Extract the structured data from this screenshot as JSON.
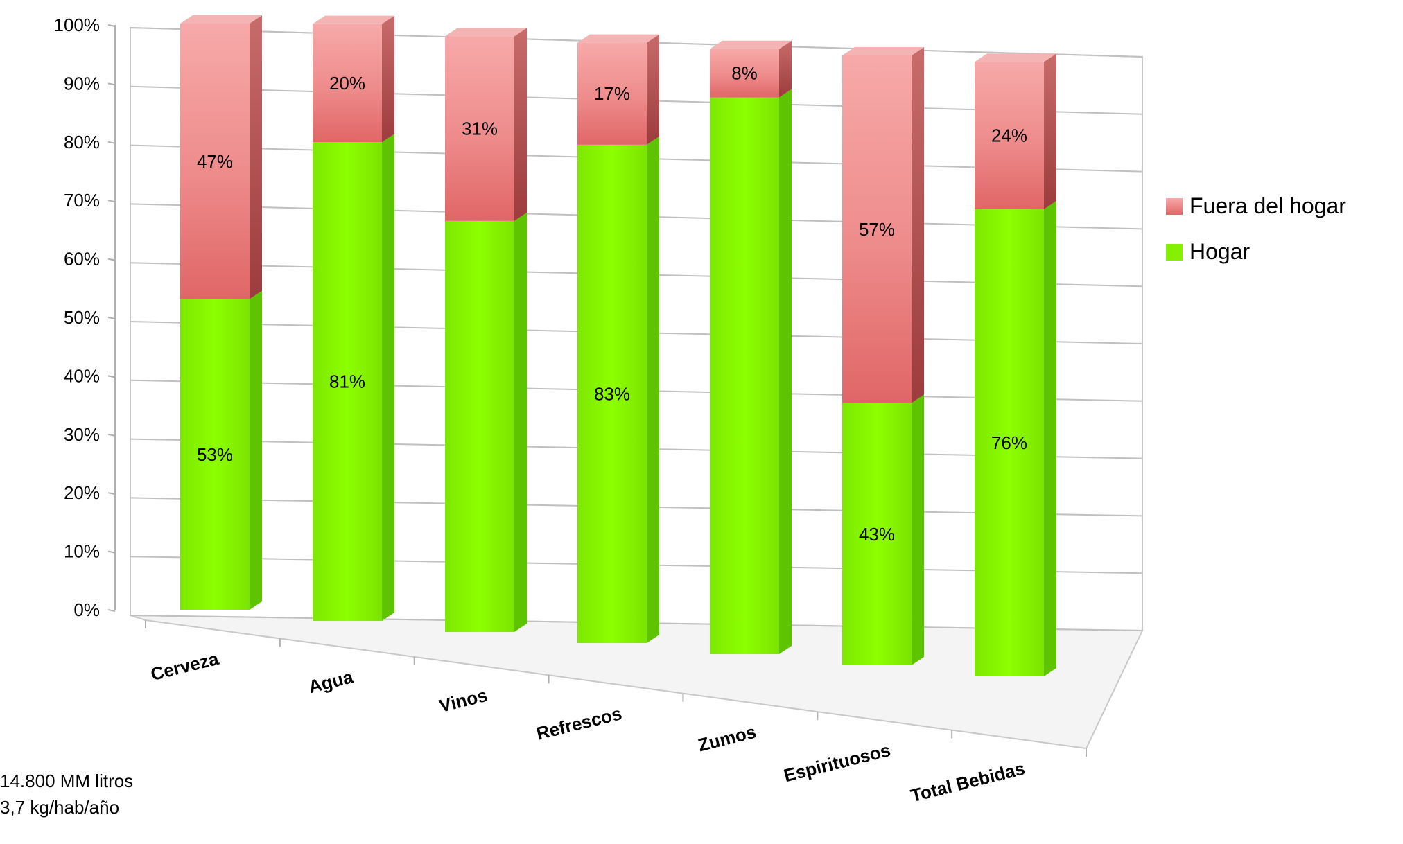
{
  "chart_data": {
    "type": "bar",
    "stacked": true,
    "three_d": true,
    "categories": [
      "Cerveza",
      "Agua",
      "Vinos",
      "Refrescos",
      "Zumos",
      "Espirituosos",
      "Total Bebidas"
    ],
    "series": [
      {
        "name": "Hogar",
        "color": "#84f000",
        "values": [
          53,
          81,
          69,
          83,
          92,
          43,
          76
        ],
        "labels": [
          "53%",
          "81%",
          "",
          "83%",
          "",
          "43%",
          "76%"
        ]
      },
      {
        "name": "Fuera del hogar",
        "color": "#f08a8a",
        "values": [
          47,
          20,
          31,
          17,
          8,
          57,
          24
        ],
        "labels": [
          "47%",
          "20%",
          "31%",
          "17%",
          "8%",
          "57%",
          "24%"
        ]
      }
    ],
    "y_ticks": [
      "0%",
      "10%",
      "20%",
      "30%",
      "40%",
      "50%",
      "60%",
      "70%",
      "80%",
      "90%",
      "100%"
    ],
    "ylim": [
      0,
      100
    ],
    "grid": true,
    "legend_position": "right"
  },
  "footnotes": [
    "14.800 MM litros",
    "3,7 kg/hab/año"
  ]
}
